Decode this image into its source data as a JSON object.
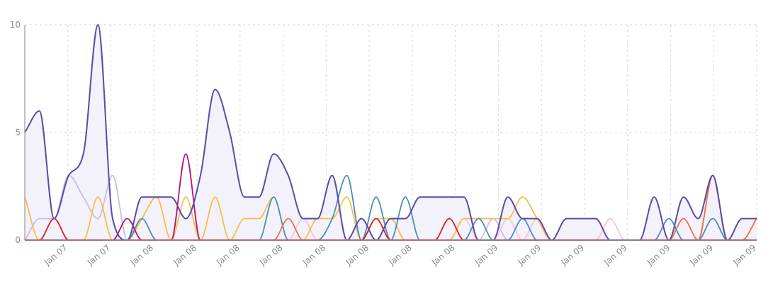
{
  "chart_data": {
    "type": "line",
    "title": "",
    "xlabel": "",
    "ylabel": "",
    "ylim": [
      0,
      10
    ],
    "y_ticks": [
      "0",
      "5",
      "10"
    ],
    "x_tick_labels": [
      "Jan 07",
      "Jan 07",
      "Jan 08",
      "Jan 08",
      "Jan 08",
      "Jan 08",
      "Jan 08",
      "Jan 08",
      "Jan 08",
      "Jan 08",
      "Jan 09",
      "Jan 09",
      "Jan 09",
      "Jan 09",
      "Jan 09",
      "Jan 09",
      "Jan 09"
    ],
    "grid": true,
    "legend": "none",
    "x_points": 51,
    "series": [
      {
        "color": "#5b4aa8",
        "fill": "#f3f1fa",
        "values": [
          5,
          6,
          1,
          3,
          4,
          10,
          1,
          0,
          2,
          2,
          2,
          1,
          3,
          7,
          5,
          2,
          2,
          4,
          3,
          1,
          1,
          3,
          0,
          1,
          0,
          1,
          1,
          2,
          2,
          2,
          2,
          0,
          0,
          2,
          1,
          1,
          0,
          1,
          1,
          1,
          0,
          0,
          0,
          2,
          0,
          2,
          1,
          3,
          0,
          1,
          1
        ]
      },
      {
        "color": "#c6bde8",
        "values": [
          0,
          1,
          1,
          3,
          2,
          1,
          3,
          0,
          0,
          0,
          0,
          0,
          0,
          0,
          0,
          0,
          0,
          0,
          0,
          0,
          0,
          0,
          0,
          0,
          0,
          0,
          0,
          0,
          0,
          0,
          0,
          0,
          1,
          0,
          0,
          0,
          0,
          0,
          0,
          0,
          0,
          0,
          0,
          0,
          0,
          0,
          0,
          0,
          0,
          0,
          0
        ]
      },
      {
        "color": "#f5c045",
        "values": [
          2,
          0,
          0,
          0,
          0,
          2,
          0,
          0,
          1,
          2,
          0,
          2,
          0,
          2,
          0,
          1,
          1,
          2,
          0,
          0,
          1,
          1,
          2,
          0,
          1,
          1,
          0,
          0,
          0,
          0,
          1,
          1,
          1,
          1,
          2,
          1,
          0,
          0,
          0,
          0,
          0,
          0,
          0,
          0,
          0,
          0,
          0,
          3,
          0,
          0,
          1
        ]
      },
      {
        "color": "#4a8fb8",
        "values": [
          0,
          0,
          0,
          0,
          0,
          0,
          0,
          0,
          1,
          0,
          0,
          0,
          0,
          0,
          0,
          0,
          0,
          2,
          0,
          0,
          0,
          1,
          3,
          0,
          2,
          0,
          2,
          0,
          0,
          0,
          0,
          1,
          0,
          0,
          1,
          0,
          0,
          0,
          0,
          0,
          0,
          0,
          0,
          0,
          1,
          0,
          0,
          1,
          0,
          0,
          0
        ]
      },
      {
        "color": "#b5127a",
        "values": [
          0,
          0,
          0,
          0,
          0,
          0,
          0,
          1,
          0,
          0,
          0,
          4,
          0,
          0,
          0,
          0,
          0,
          0,
          0,
          0,
          0,
          0,
          0,
          0,
          0,
          0,
          0,
          0,
          0,
          0,
          0,
          0,
          0,
          0,
          0,
          0,
          0,
          0,
          0,
          0,
          0,
          0,
          0,
          0,
          0,
          0,
          0,
          0,
          0,
          0,
          0
        ]
      },
      {
        "color": "#f4c6dc",
        "values": [
          0,
          0,
          0,
          0,
          0,
          0,
          0,
          0,
          0,
          0,
          0,
          0,
          0,
          0,
          0,
          0,
          0,
          0,
          0,
          1,
          0,
          0,
          0,
          0,
          0,
          0,
          0,
          0,
          0,
          0,
          1,
          0,
          0,
          1,
          0,
          1,
          0,
          0,
          0,
          0,
          1,
          0,
          0,
          0,
          0,
          0,
          0,
          0,
          0,
          0,
          0
        ]
      },
      {
        "color": "#e8744a",
        "values": [
          0,
          0,
          0,
          0,
          0,
          0,
          0,
          0,
          0,
          0,
          0,
          0,
          0,
          0,
          0,
          0,
          0,
          0,
          1,
          0,
          0,
          0,
          0,
          0,
          0,
          0,
          0,
          0,
          0,
          0,
          0,
          0,
          0,
          0,
          0,
          0,
          0,
          0,
          0,
          0,
          0,
          0,
          0,
          0,
          0,
          1,
          0,
          3,
          0,
          0,
          1
        ]
      },
      {
        "color": "#d81e2a",
        "values": [
          0,
          0,
          1,
          0,
          0,
          0,
          0,
          0,
          0,
          0,
          0,
          0,
          0,
          0,
          0,
          0,
          0,
          0,
          0,
          0,
          0,
          0,
          0,
          0,
          1,
          0,
          0,
          0,
          0,
          1,
          0,
          0,
          0,
          0,
          0,
          0,
          0,
          0,
          0,
          0,
          0,
          0,
          0,
          0,
          0,
          0,
          0,
          0,
          0,
          0,
          0
        ]
      }
    ]
  }
}
